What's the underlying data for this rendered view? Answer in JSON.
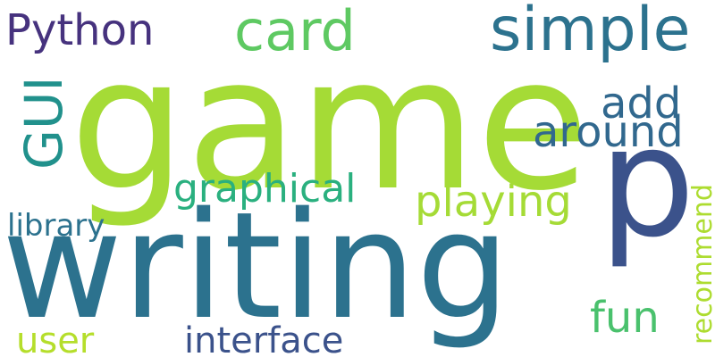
{
  "words": [
    {
      "id": "game",
      "text": "game",
      "color": "#a5db36"
    },
    {
      "id": "writing",
      "text": "writing",
      "color": "#2c728e"
    },
    {
      "id": "p",
      "text": "p",
      "color": "#3b528b"
    },
    {
      "id": "simple",
      "text": "simple",
      "color": "#2c728e"
    },
    {
      "id": "card",
      "text": "card",
      "color": "#5ec962"
    },
    {
      "id": "python",
      "text": "Python",
      "color": "#46327e"
    },
    {
      "id": "gui",
      "text": "GUI",
      "color": "#21918c"
    },
    {
      "id": "add",
      "text": "add",
      "color": "#31688e"
    },
    {
      "id": "around",
      "text": "around",
      "color": "#31688e"
    },
    {
      "id": "graphical",
      "text": "graphical",
      "color": "#2ab07f"
    },
    {
      "id": "playing",
      "text": "playing",
      "color": "#a5db36"
    },
    {
      "id": "library",
      "text": "library",
      "color": "#2c728e"
    },
    {
      "id": "recommend",
      "text": "recommend",
      "color": "#addc30"
    },
    {
      "id": "fun",
      "text": "fun",
      "color": "#4ac16d"
    },
    {
      "id": "user",
      "text": "user",
      "color": "#b5de2b"
    },
    {
      "id": "interface",
      "text": "interface",
      "color": "#3b528b"
    }
  ]
}
